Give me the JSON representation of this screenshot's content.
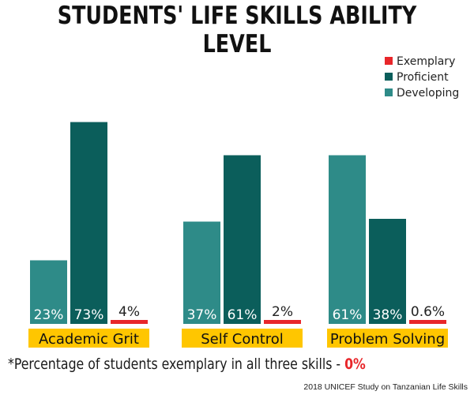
{
  "chart_data": {
    "type": "bar",
    "title": "STUDENTS' LIFE SKILLS ABILITY LEVEL",
    "categories": [
      "Academic Grit",
      "Self Control",
      "Problem Solving"
    ],
    "series": [
      {
        "name": "Developing",
        "values": [
          23,
          37,
          61
        ],
        "labels": [
          "23%",
          "37%",
          "61%"
        ],
        "color": "#2e8b88"
      },
      {
        "name": "Proficient",
        "values": [
          73,
          61,
          38
        ],
        "labels": [
          "73%",
          "61%",
          "38%"
        ],
        "color": "#0b5e5b"
      },
      {
        "name": "Exemplary",
        "values": [
          4,
          2,
          0.6
        ],
        "labels": [
          "4%",
          "2%",
          "0.6%"
        ],
        "color": "#e8262a"
      }
    ],
    "legend_order": [
      "Exemplary",
      "Proficient",
      "Developing"
    ],
    "legend_position": "top-right",
    "ylim": [
      0,
      80
    ],
    "grid": false,
    "category_label_bg": "#ffc600"
  },
  "footnote": {
    "text": "*Percentage of students exemplary in all three skills - ",
    "highlight": "0%"
  },
  "source": "2018 UNICEF Study on Tanzanian Life Skills"
}
